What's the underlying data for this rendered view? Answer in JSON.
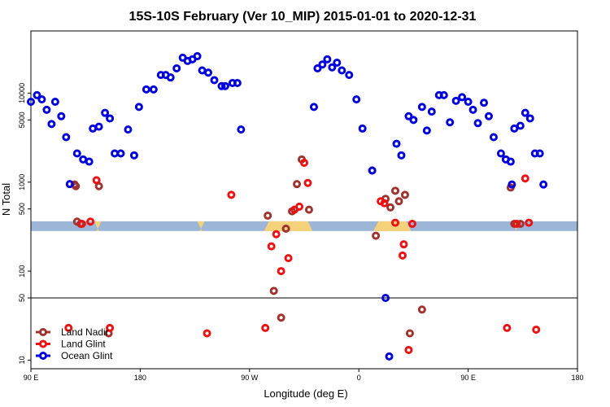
{
  "chart_data": {
    "type": "scatter",
    "title": "15S-10S February (Ver 10_MIP)   2015-01-01 to 2020-12-31",
    "xlabel": "Longitude (deg E)",
    "ylabel": "N Total",
    "x_unit": "degrees east, continuous 90E..180..0..180",
    "xlim": [
      90,
      540
    ],
    "y_scale": "log",
    "ylim": [
      8,
      50000
    ],
    "x_ticks": [
      {
        "value": 90,
        "label": "90 E"
      },
      {
        "value": 180,
        "label": "180"
      },
      {
        "value": 270,
        "label": "90 W"
      },
      {
        "value": 360,
        "label": "0"
      },
      {
        "value": 450,
        "label": "90 E"
      },
      {
        "value": 540,
        "label": "180"
      }
    ],
    "y_ticks": [
      {
        "value": 10,
        "label": "10"
      },
      {
        "value": 50,
        "label": "50"
      },
      {
        "value": 100,
        "label": "100"
      },
      {
        "value": 500,
        "label": "500"
      },
      {
        "value": 1000,
        "label": "1000"
      },
      {
        "value": 5000,
        "label": "5000"
      },
      {
        "value": 10000,
        "label": "10000"
      }
    ],
    "reference_line_y": 50,
    "land_mask_band": {
      "y_center": 320,
      "ocean_color": "#9db6d8",
      "land_color": "#f5d27a",
      "land_ranges": [
        [
          144,
          146
        ],
        [
          282,
          322
        ],
        [
          372,
          403
        ],
        [
          229,
          231
        ],
        [
          489,
          490
        ]
      ]
    },
    "legend": {
      "position": "bottom-left",
      "entries": [
        "Land Nadir",
        "Land Glint",
        "Ocean Glint"
      ]
    },
    "series": [
      {
        "name": "Land Nadir",
        "color": "#a0332e",
        "points": [
          [
            127,
            900
          ],
          [
            126,
            940
          ],
          [
            128,
            360
          ],
          [
            131,
            340
          ],
          [
            285,
            420
          ],
          [
            290,
            60
          ],
          [
            296,
            30
          ],
          [
            300,
            300
          ],
          [
            305,
            470
          ],
          [
            309,
            950
          ],
          [
            313,
            1800
          ],
          [
            319,
            490
          ],
          [
            374,
            250
          ],
          [
            382,
            650
          ],
          [
            386,
            520
          ],
          [
            390,
            800
          ],
          [
            393,
            610
          ],
          [
            398,
            720
          ],
          [
            402,
            20
          ],
          [
            412,
            37
          ],
          [
            485,
            870
          ],
          [
            488,
            340
          ],
          [
            493,
            340
          ],
          [
            154,
            20
          ],
          [
            146,
            900
          ]
        ]
      },
      {
        "name Land Glint": "",
        "name": "Land Glint",
        "color": "#ee1111",
        "points": [
          [
            132,
            340
          ],
          [
            139,
            360
          ],
          [
            144,
            1050
          ],
          [
            155,
            23
          ],
          [
            235,
            20
          ],
          [
            255,
            720
          ],
          [
            283,
            23
          ],
          [
            288,
            190
          ],
          [
            292,
            260
          ],
          [
            296,
            100
          ],
          [
            302,
            140
          ],
          [
            307,
            490
          ],
          [
            311,
            530
          ],
          [
            315,
            1650
          ],
          [
            318,
            980
          ],
          [
            371,
            1350
          ],
          [
            378,
            610
          ],
          [
            381,
            580
          ],
          [
            390,
            350
          ],
          [
            396,
            150
          ],
          [
            397,
            200
          ],
          [
            404,
            340
          ],
          [
            401,
            13
          ],
          [
            121,
            23
          ],
          [
            490,
            340
          ],
          [
            482,
            23
          ],
          [
            506,
            22
          ],
          [
            497,
            1100
          ],
          [
            500,
            350
          ]
        ]
      },
      {
        "name": "Ocean Glint",
        "color": "#0000dd",
        "points": [
          [
            90,
            8000
          ],
          [
            95,
            9500
          ],
          [
            99,
            8500
          ],
          [
            103,
            6500
          ],
          [
            107,
            4500
          ],
          [
            110,
            8000
          ],
          [
            115,
            5500
          ],
          [
            119,
            3200
          ],
          [
            122,
            950
          ],
          [
            128,
            2100
          ],
          [
            133,
            1800
          ],
          [
            138,
            1700
          ],
          [
            141,
            4000
          ],
          [
            146,
            4200
          ],
          [
            151,
            6000
          ],
          [
            155,
            5200
          ],
          [
            159,
            2100
          ],
          [
            164,
            2100
          ],
          [
            170,
            3900
          ],
          [
            175,
            2000
          ],
          [
            179,
            7000
          ],
          [
            185,
            11000
          ],
          [
            191,
            11000
          ],
          [
            197,
            16000
          ],
          [
            201,
            16000
          ],
          [
            205,
            15000
          ],
          [
            210,
            19000
          ],
          [
            215,
            25000
          ],
          [
            219,
            23000
          ],
          [
            223,
            24000
          ],
          [
            227,
            26000
          ],
          [
            231,
            18000
          ],
          [
            236,
            17000
          ],
          [
            241,
            14000
          ],
          [
            247,
            12000
          ],
          [
            250,
            12000
          ],
          [
            256,
            13000
          ],
          [
            260,
            13000
          ],
          [
            263,
            3900
          ],
          [
            323,
            7000
          ],
          [
            326,
            19000
          ],
          [
            330,
            21000
          ],
          [
            334,
            24000
          ],
          [
            338,
            19500
          ],
          [
            342,
            22000
          ],
          [
            346,
            18000
          ],
          [
            352,
            16000
          ],
          [
            358,
            8500
          ],
          [
            363,
            4000
          ],
          [
            371,
            1350
          ],
          [
            382,
            50
          ],
          [
            385,
            11
          ],
          [
            391,
            2700
          ],
          [
            395,
            2000
          ],
          [
            401,
            5500
          ],
          [
            405,
            5000
          ],
          [
            412,
            7000
          ],
          [
            416,
            3800
          ],
          [
            420,
            6200
          ],
          [
            426,
            9500
          ],
          [
            430,
            9500
          ],
          [
            435,
            4700
          ],
          [
            440,
            8200
          ],
          [
            445,
            9000
          ],
          [
            450,
            8000
          ],
          [
            454,
            6500
          ],
          [
            458,
            4600
          ],
          [
            463,
            7800
          ],
          [
            467,
            5500
          ],
          [
            471,
            3200
          ],
          [
            477,
            2100
          ],
          [
            481,
            1800
          ],
          [
            485,
            1700
          ],
          [
            488,
            4000
          ],
          [
            493,
            4300
          ],
          [
            497,
            6000
          ],
          [
            501,
            5200
          ],
          [
            505,
            2100
          ],
          [
            509,
            2100
          ],
          [
            512,
            940
          ],
          [
            486,
            940
          ]
        ]
      }
    ]
  }
}
